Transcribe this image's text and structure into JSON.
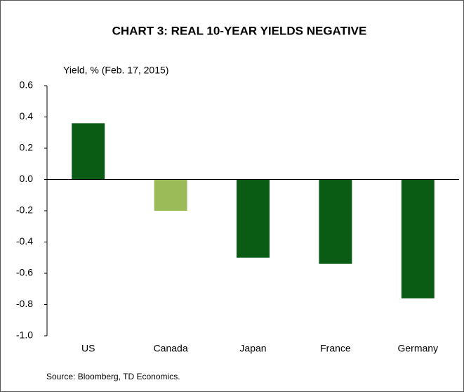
{
  "chart_data": {
    "type": "bar",
    "title": "CHART 3: REAL 10-YEAR YIELDS NEGATIVE",
    "y_axis_label": "Yield, % (Feb. 17, 2015)",
    "source": "Source: Bloomberg, TD Economics.",
    "categories": [
      "US",
      "Canada",
      "Japan",
      "France",
      "Germany"
    ],
    "values": [
      0.36,
      -0.2,
      -0.5,
      -0.54,
      -0.76
    ],
    "colors": [
      "#0a5c14",
      "#9bbb59",
      "#0a5c14",
      "#0a5c14",
      "#0a5c14"
    ],
    "ylim": [
      -1,
      0.6
    ],
    "yticks": [
      0.6,
      0.4,
      0.2,
      {
        "value": 0,
        "label": "0.0"
      },
      -0.2,
      -0.4,
      -0.6,
      -0.8,
      {
        "value": -1,
        "label": "-1.0"
      }
    ],
    "grid": false
  }
}
